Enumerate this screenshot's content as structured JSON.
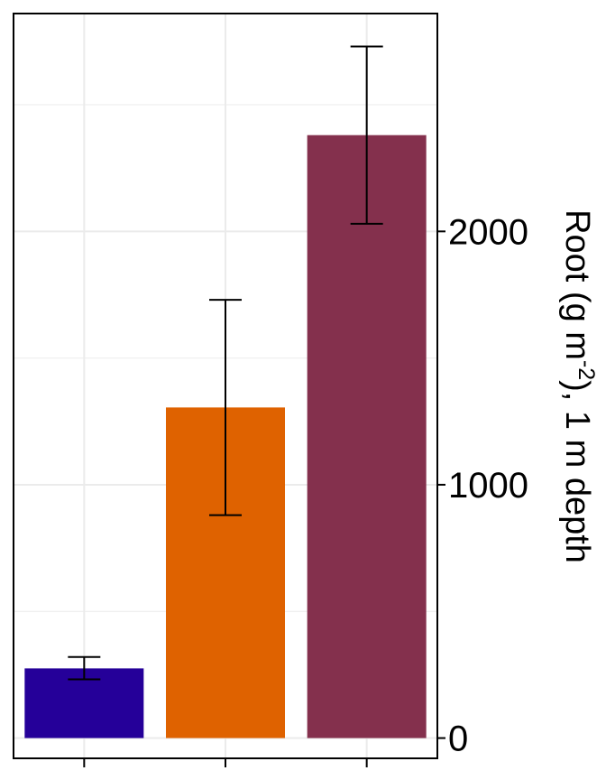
{
  "chart_data": {
    "type": "bar",
    "title": "",
    "xlabel": "",
    "categories": [
      "",
      "",
      ""
    ],
    "values": [
      275,
      1305,
      2380
    ],
    "error_bars": [
      {
        "low": 232,
        "high": 320
      },
      {
        "low": 880,
        "high": 1730
      },
      {
        "low": 2030,
        "high": 2730
      }
    ],
    "bar_colors": [
      "#250099",
      "#DF6200",
      "#84304D"
    ],
    "ylabel": {
      "pre": "Root (g m",
      "sup": "-2",
      "post": "), 1 m depth"
    },
    "yaxis_position": "right",
    "ylim": [
      -80,
      2860
    ],
    "yticks": [
      0,
      1000,
      2000
    ],
    "ytick_labels": [
      "0",
      "1000",
      "2000"
    ],
    "minor_gridlines": [
      500,
      1500,
      2500
    ],
    "grid": true,
    "legend": "none"
  }
}
